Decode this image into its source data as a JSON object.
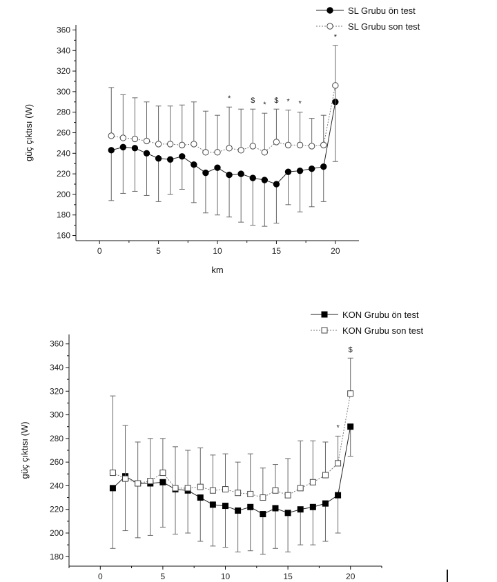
{
  "chart_data": [
    {
      "type": "line",
      "xlabel": "km",
      "ylabel": "güç çıktısı (W)",
      "xlim": [
        -2,
        22
      ],
      "ylim": [
        155,
        365
      ],
      "xticks": [
        0,
        5,
        10,
        15,
        20
      ],
      "yticks": [
        160,
        180,
        200,
        220,
        240,
        260,
        280,
        300,
        320,
        340,
        360
      ],
      "legend_position": "top-right",
      "x": [
        1,
        2,
        3,
        4,
        5,
        6,
        7,
        8,
        9,
        10,
        11,
        12,
        13,
        14,
        15,
        16,
        17,
        18,
        19,
        20
      ],
      "series": [
        {
          "name": "SL Grubu ön test",
          "marker": "filled-circle",
          "line_style": "solid",
          "values": [
            243,
            246,
            245,
            240,
            235,
            234,
            237,
            229,
            221,
            226,
            219,
            220,
            216,
            214,
            210,
            222,
            223,
            225,
            227,
            290
          ],
          "error_low": [
            194,
            201,
            203,
            199,
            193,
            200,
            205,
            192,
            182,
            180,
            178,
            173,
            170,
            169,
            172,
            190,
            183,
            188,
            193,
            290
          ],
          "error_high": [
            243,
            246,
            245,
            240,
            235,
            234,
            237,
            229,
            221,
            226,
            219,
            220,
            216,
            214,
            210,
            222,
            223,
            225,
            227,
            290
          ]
        },
        {
          "name": "SL Grubu son test",
          "marker": "open-circle",
          "line_style": "dotted",
          "values": [
            257,
            255,
            254,
            252,
            249,
            249,
            248,
            249,
            241,
            241,
            245,
            243,
            247,
            241,
            251,
            248,
            248,
            247,
            248,
            306
          ],
          "error_low": [
            257,
            255,
            254,
            252,
            249,
            249,
            248,
            249,
            241,
            241,
            245,
            243,
            247,
            241,
            251,
            248,
            248,
            247,
            248,
            232
          ],
          "error_high": [
            304,
            297,
            294,
            290,
            286,
            286,
            287,
            290,
            281,
            277,
            285,
            283,
            283,
            279,
            283,
            282,
            280,
            274,
            277,
            345
          ]
        }
      ],
      "annotations": [
        {
          "x": 11,
          "text": "*"
        },
        {
          "x": 13,
          "text": "$"
        },
        {
          "x": 14,
          "text": "*"
        },
        {
          "x": 15,
          "text": "$"
        },
        {
          "x": 16,
          "text": "*"
        },
        {
          "x": 17,
          "text": "*"
        },
        {
          "x": 20,
          "text": "*"
        }
      ]
    },
    {
      "type": "line",
      "xlabel": "",
      "ylabel": "güç çıktısı (W)",
      "xlim": [
        -2.5,
        22.5
      ],
      "ylim": [
        172,
        368
      ],
      "xticks": [
        0,
        5,
        10,
        15,
        20
      ],
      "yticks": [
        180,
        200,
        220,
        240,
        260,
        280,
        300,
        320,
        340,
        360
      ],
      "legend_position": "top-right",
      "x": [
        1,
        2,
        3,
        4,
        5,
        6,
        7,
        8,
        9,
        10,
        11,
        12,
        13,
        14,
        15,
        16,
        17,
        18,
        19,
        20
      ],
      "series": [
        {
          "name": "KON Grubu ön test",
          "marker": "filled-square",
          "line_style": "solid",
          "values": [
            238,
            248,
            242,
            242,
            243,
            237,
            236,
            230,
            224,
            223,
            219,
            222,
            216,
            221,
            217,
            220,
            222,
            225,
            232,
            290
          ],
          "error_low": [
            187,
            202,
            196,
            198,
            205,
            199,
            200,
            193,
            189,
            188,
            184,
            185,
            182,
            187,
            184,
            190,
            190,
            193,
            200,
            265
          ],
          "error_high": [
            238,
            248,
            242,
            242,
            243,
            237,
            236,
            230,
            224,
            223,
            219,
            222,
            216,
            221,
            217,
            220,
            222,
            225,
            232,
            290
          ]
        },
        {
          "name": "KON Grubu son test",
          "marker": "open-square",
          "line_style": "dotted",
          "values": [
            251,
            246,
            242,
            244,
            251,
            238,
            238,
            239,
            236,
            237,
            234,
            233,
            230,
            236,
            232,
            238,
            243,
            249,
            259,
            318
          ],
          "error_low": [
            251,
            246,
            242,
            244,
            251,
            238,
            238,
            239,
            236,
            237,
            234,
            233,
            230,
            236,
            232,
            238,
            243,
            249,
            259,
            318
          ],
          "error_high": [
            316,
            291,
            277,
            280,
            280,
            273,
            270,
            272,
            266,
            267,
            260,
            267,
            255,
            258,
            263,
            278,
            278,
            277,
            282,
            348
          ]
        }
      ],
      "annotations": [
        {
          "x": 19,
          "text": "*"
        },
        {
          "x": 20,
          "text": "$"
        }
      ]
    }
  ]
}
